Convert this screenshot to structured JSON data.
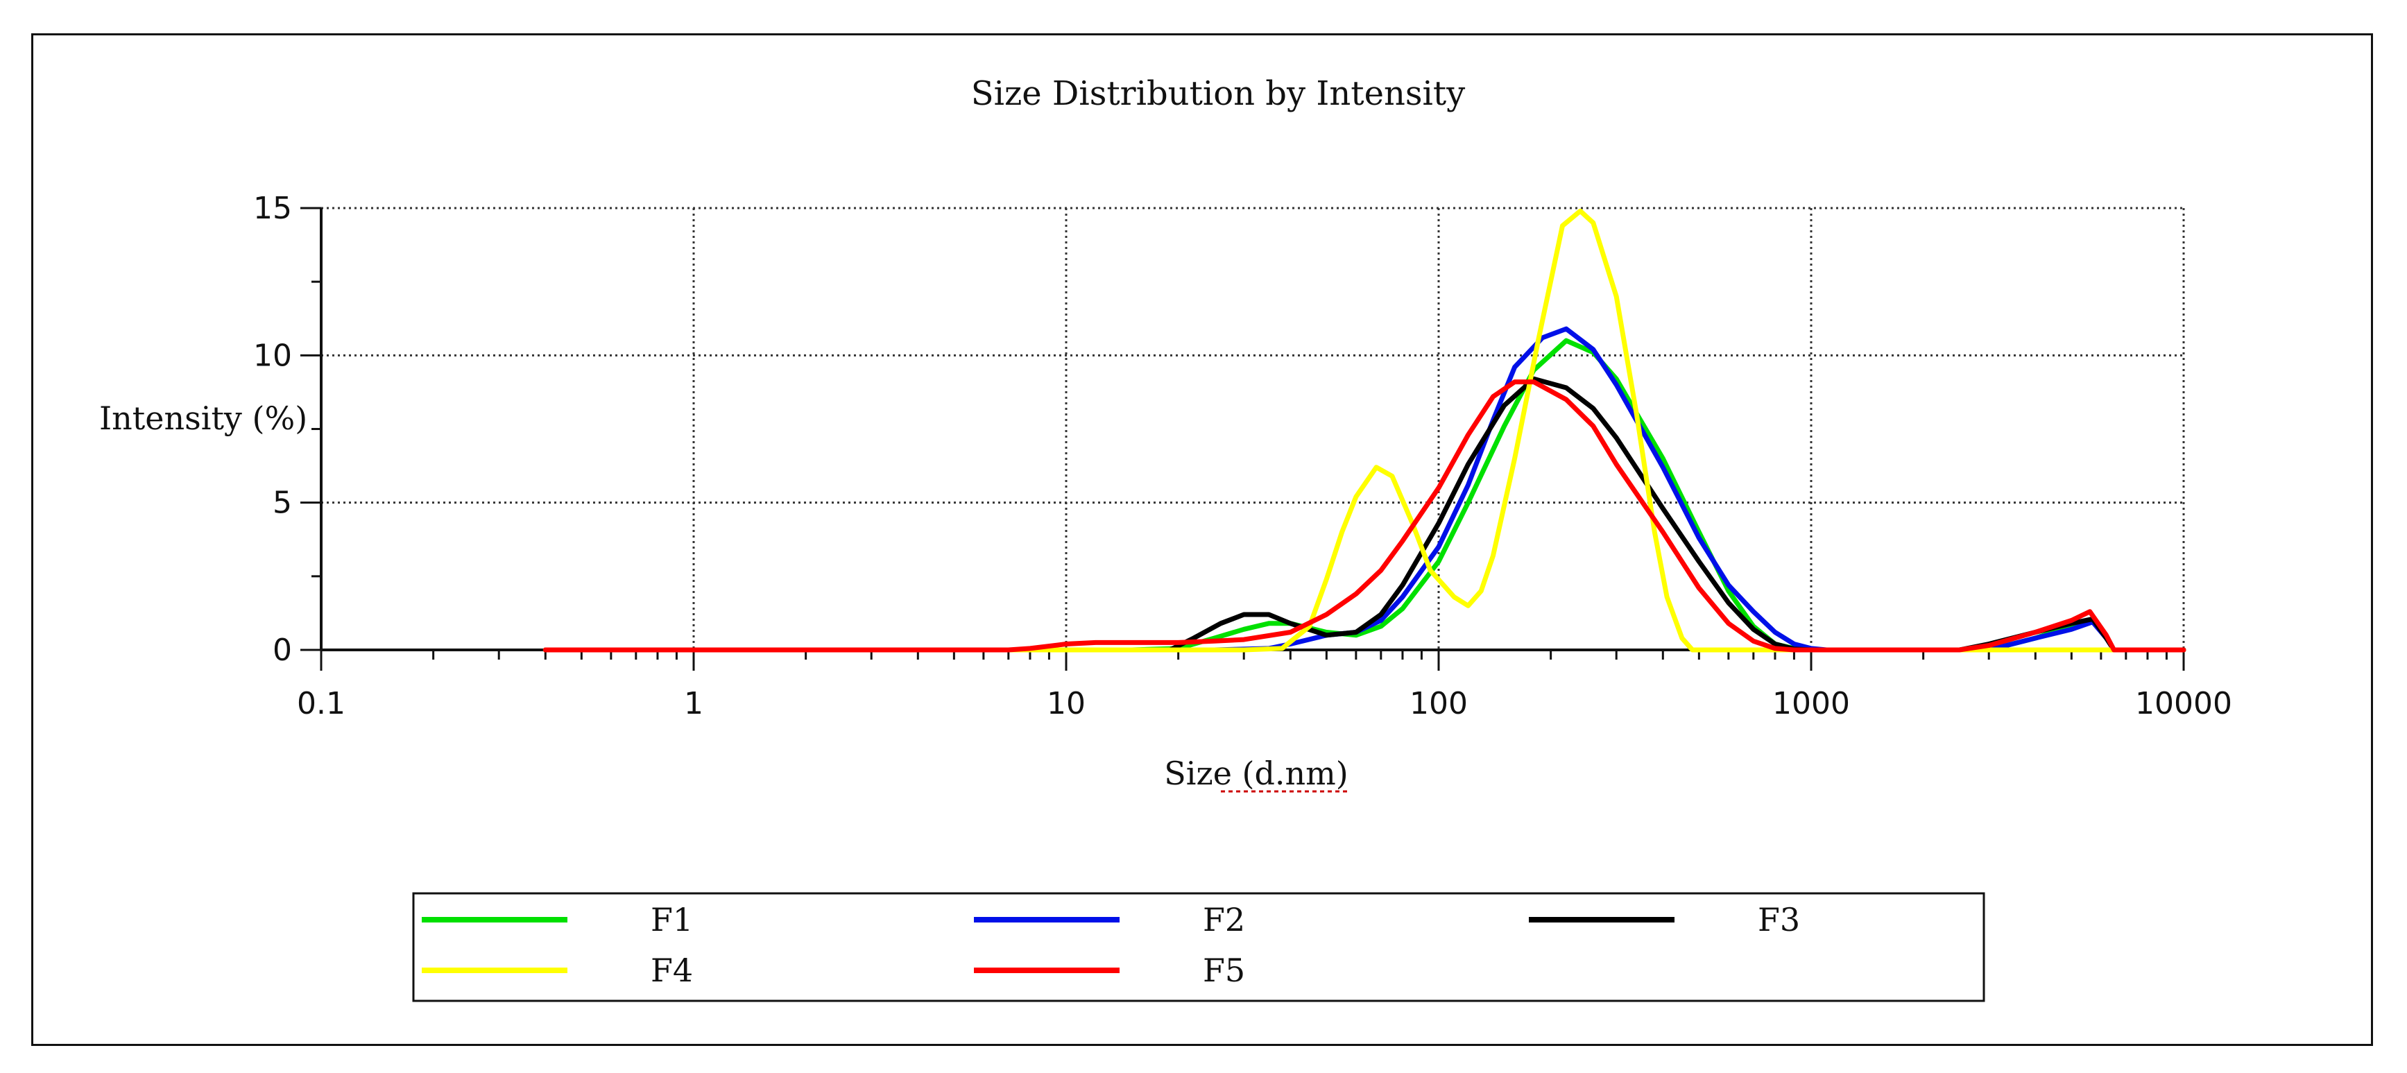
{
  "chart_data": {
    "type": "line",
    "title": "Size Distribution by Intensity",
    "xlabel": "Size (d.nm)",
    "ylabel": "Intensity (%)",
    "xscale": "log",
    "xlim": [
      0.1,
      10000
    ],
    "ylim": [
      0,
      15
    ],
    "x_ticks": [
      0.1,
      1,
      10,
      100,
      1000,
      10000
    ],
    "x_tick_labels": [
      "0.1",
      "1",
      "10",
      "100",
      "1000",
      "10000"
    ],
    "y_ticks": [
      0,
      5,
      10,
      15
    ],
    "y_tick_labels": [
      "0",
      "5",
      "10",
      "15"
    ],
    "grid": true,
    "legend_position": "bottom",
    "series": [
      {
        "name": "F1",
        "color": "#00e000",
        "points": [
          [
            0.4,
            0
          ],
          [
            15,
            0
          ],
          [
            20,
            0.05
          ],
          [
            25,
            0.4
          ],
          [
            30,
            0.7
          ],
          [
            35,
            0.9
          ],
          [
            40,
            0.9
          ],
          [
            50,
            0.6
          ],
          [
            60,
            0.5
          ],
          [
            70,
            0.8
          ],
          [
            80,
            1.4
          ],
          [
            100,
            3.0
          ],
          [
            120,
            5.0
          ],
          [
            150,
            7.6
          ],
          [
            180,
            9.5
          ],
          [
            220,
            10.5
          ],
          [
            260,
            10.1
          ],
          [
            300,
            9.2
          ],
          [
            400,
            6.5
          ],
          [
            500,
            4.0
          ],
          [
            600,
            2.0
          ],
          [
            700,
            0.8
          ],
          [
            800,
            0.2
          ],
          [
            900,
            0.05
          ],
          [
            1000,
            0
          ],
          [
            3000,
            0
          ],
          [
            4000,
            0.4
          ],
          [
            5000,
            0.8
          ],
          [
            5700,
            1.0
          ],
          [
            6200,
            0.4
          ],
          [
            6500,
            0
          ],
          [
            10000,
            0
          ]
        ]
      },
      {
        "name": "F2",
        "color": "#0010e8",
        "points": [
          [
            0.4,
            0
          ],
          [
            25,
            0
          ],
          [
            35,
            0.05
          ],
          [
            40,
            0.2
          ],
          [
            50,
            0.5
          ],
          [
            60,
            0.6
          ],
          [
            70,
            1.0
          ],
          [
            80,
            1.8
          ],
          [
            100,
            3.5
          ],
          [
            120,
            5.6
          ],
          [
            140,
            7.8
          ],
          [
            160,
            9.6
          ],
          [
            190,
            10.6
          ],
          [
            220,
            10.9
          ],
          [
            260,
            10.2
          ],
          [
            300,
            9.0
          ],
          [
            400,
            6.2
          ],
          [
            500,
            3.8
          ],
          [
            600,
            2.2
          ],
          [
            700,
            1.3
          ],
          [
            800,
            0.6
          ],
          [
            900,
            0.2
          ],
          [
            1000,
            0.05
          ],
          [
            1100,
            0
          ],
          [
            3000,
            0
          ],
          [
            4000,
            0.4
          ],
          [
            5000,
            0.7
          ],
          [
            5700,
            0.95
          ],
          [
            6200,
            0.4
          ],
          [
            6500,
            0
          ],
          [
            10000,
            0
          ]
        ]
      },
      {
        "name": "F3",
        "color": "#000000",
        "points": [
          [
            0.4,
            0
          ],
          [
            19,
            0
          ],
          [
            22,
            0.4
          ],
          [
            26,
            0.9
          ],
          [
            30,
            1.2
          ],
          [
            35,
            1.2
          ],
          [
            40,
            0.9
          ],
          [
            50,
            0.5
          ],
          [
            60,
            0.6
          ],
          [
            70,
            1.2
          ],
          [
            80,
            2.2
          ],
          [
            100,
            4.3
          ],
          [
            120,
            6.3
          ],
          [
            150,
            8.3
          ],
          [
            180,
            9.2
          ],
          [
            220,
            8.9
          ],
          [
            260,
            8.2
          ],
          [
            300,
            7.2
          ],
          [
            400,
            4.8
          ],
          [
            500,
            3.0
          ],
          [
            600,
            1.6
          ],
          [
            700,
            0.7
          ],
          [
            800,
            0.2
          ],
          [
            900,
            0.03
          ],
          [
            1000,
            0
          ],
          [
            2500,
            0
          ],
          [
            3000,
            0.2
          ],
          [
            4000,
            0.6
          ],
          [
            5000,
            0.9
          ],
          [
            5700,
            1.05
          ],
          [
            6200,
            0.4
          ],
          [
            6500,
            0
          ],
          [
            10000,
            0
          ]
        ]
      },
      {
        "name": "F4",
        "color": "#ffff00",
        "points": [
          [
            0.4,
            0
          ],
          [
            30,
            0
          ],
          [
            38,
            0.05
          ],
          [
            45,
            0.8
          ],
          [
            50,
            2.4
          ],
          [
            55,
            4.0
          ],
          [
            60,
            5.2
          ],
          [
            68,
            6.2
          ],
          [
            75,
            5.9
          ],
          [
            85,
            4.3
          ],
          [
            95,
            2.7
          ],
          [
            110,
            1.8
          ],
          [
            120,
            1.5
          ],
          [
            130,
            2.0
          ],
          [
            140,
            3.2
          ],
          [
            160,
            6.5
          ],
          [
            185,
            10.5
          ],
          [
            215,
            14.4
          ],
          [
            240,
            14.9
          ],
          [
            260,
            14.5
          ],
          [
            300,
            12.0
          ],
          [
            340,
            8.0
          ],
          [
            380,
            4.0
          ],
          [
            410,
            1.8
          ],
          [
            450,
            0.4
          ],
          [
            480,
            0
          ],
          [
            10000,
            0
          ]
        ]
      },
      {
        "name": "F5",
        "color": "#ff0000",
        "points": [
          [
            0.4,
            0
          ],
          [
            7,
            0
          ],
          [
            8,
            0.05
          ],
          [
            10,
            0.2
          ],
          [
            12,
            0.25
          ],
          [
            20,
            0.25
          ],
          [
            25,
            0.3
          ],
          [
            30,
            0.35
          ],
          [
            40,
            0.6
          ],
          [
            50,
            1.2
          ],
          [
            60,
            1.9
          ],
          [
            70,
            2.7
          ],
          [
            80,
            3.7
          ],
          [
            100,
            5.5
          ],
          [
            120,
            7.3
          ],
          [
            140,
            8.6
          ],
          [
            160,
            9.1
          ],
          [
            180,
            9.1
          ],
          [
            220,
            8.5
          ],
          [
            260,
            7.6
          ],
          [
            300,
            6.3
          ],
          [
            400,
            4.0
          ],
          [
            500,
            2.1
          ],
          [
            600,
            0.9
          ],
          [
            700,
            0.3
          ],
          [
            800,
            0.05
          ],
          [
            900,
            0
          ],
          [
            2500,
            0
          ],
          [
            3000,
            0.15
          ],
          [
            4000,
            0.6
          ],
          [
            5000,
            1.0
          ],
          [
            5600,
            1.3
          ],
          [
            6200,
            0.5
          ],
          [
            6500,
            0
          ],
          [
            10000,
            0
          ]
        ]
      }
    ]
  }
}
